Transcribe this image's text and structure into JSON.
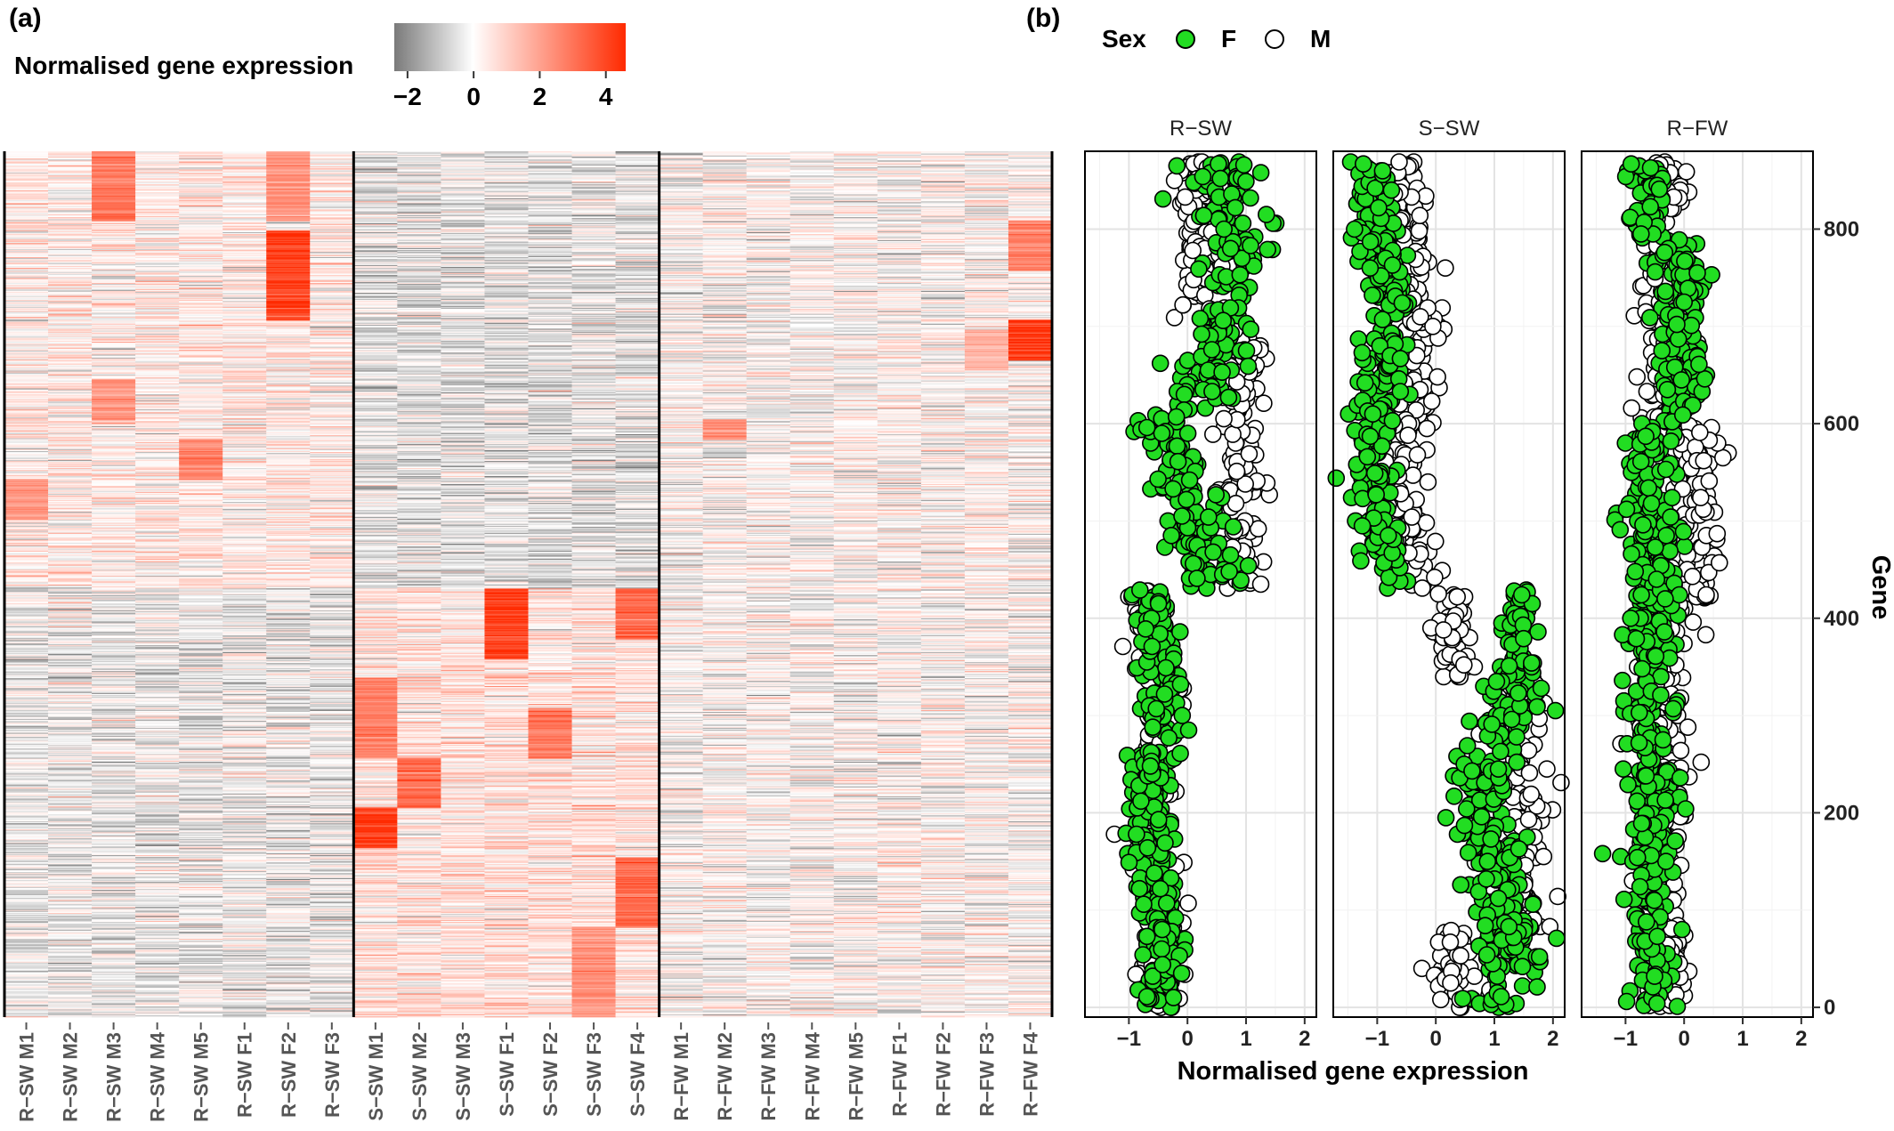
{
  "figure": {
    "panel_a_label": "(a)",
    "panel_b_label": "(b)"
  },
  "colors": {
    "low": "#7a7a7a",
    "mid": "#ffffff",
    "high": "#ff2a00",
    "female_fill": "#22dd22",
    "male_fill": "#ffffff",
    "point_stroke": "#000000"
  },
  "chart_data": [
    {
      "type": "heatmap",
      "title": "",
      "colorbar": {
        "title": "Normalised gene expression",
        "ticks": [
          "−2",
          "0",
          "2",
          "4"
        ],
        "range": [
          -2.4,
          4.6
        ]
      },
      "columns": [
        "R−SW M1",
        "R−SW M2",
        "R−SW M3",
        "R−SW M4",
        "R−SW M5",
        "R−SW F1",
        "R−SW F2",
        "R−SW F3",
        "S−SW M1",
        "S−SW M2",
        "S−SW M3",
        "S−SW F1",
        "S−SW F2",
        "S−SW F3",
        "S−SW F4",
        "R−FW M1",
        "R−FW M2",
        "R−FW M3",
        "R−FW M4",
        "R−FW M5",
        "R−FW F1",
        "R−FW F2",
        "R−FW F3",
        "R−FW F4"
      ],
      "groups": [
        "R−SW",
        "S−SW",
        "R−FW"
      ],
      "group_sizes": [
        8,
        7,
        9
      ],
      "n_genes": 870,
      "hotspots": [
        {
          "column": "R−SW M3",
          "gene_range": [
            800,
            870
          ],
          "value": 3.2
        },
        {
          "column": "R−SW M3",
          "gene_range": [
            600,
            640
          ],
          "value": 2.5
        },
        {
          "column": "R−SW F2",
          "gene_range": [
            700,
            790
          ],
          "value": 4.5
        },
        {
          "column": "R−SW F2",
          "gene_range": [
            800,
            870
          ],
          "value": 2.5
        },
        {
          "column": "R−SW M5",
          "gene_range": [
            540,
            580
          ],
          "value": 3.0
        },
        {
          "column": "R−SW M1",
          "gene_range": [
            500,
            540
          ],
          "value": 2.5
        },
        {
          "column": "S−SW F1",
          "gene_range": [
            360,
            430
          ],
          "value": 4.5
        },
        {
          "column": "S−SW F4",
          "gene_range": [
            380,
            430
          ],
          "value": 3.5
        },
        {
          "column": "S−SW F4",
          "gene_range": [
            90,
            160
          ],
          "value": 3.5
        },
        {
          "column": "S−SW F2",
          "gene_range": [
            260,
            310
          ],
          "value": 3.2
        },
        {
          "column": "S−SW M1",
          "gene_range": [
            170,
            210
          ],
          "value": 4.5
        },
        {
          "column": "S−SW M1",
          "gene_range": [
            260,
            340
          ],
          "value": 3.0
        },
        {
          "column": "S−SW M2",
          "gene_range": [
            210,
            260
          ],
          "value": 3.5
        },
        {
          "column": "S−SW F3",
          "gene_range": [
            0,
            90
          ],
          "value": 2.5
        },
        {
          "column": "R−FW F4",
          "gene_range": [
            660,
            700
          ],
          "value": 4.5
        },
        {
          "column": "R−FW F4",
          "gene_range": [
            750,
            800
          ],
          "value": 3.0
        },
        {
          "column": "R−FW M2",
          "gene_range": [
            580,
            600
          ],
          "value": 2.5
        },
        {
          "column": "R−FW F3",
          "gene_range": [
            650,
            690
          ],
          "value": 1.8
        }
      ]
    },
    {
      "type": "scatter",
      "title": "",
      "xlabel": "Normalised gene expression",
      "ylabel": "Gene",
      "xlim": [
        -1.75,
        2.2
      ],
      "ylim": [
        -10,
        880
      ],
      "xticks": [
        -1,
        0,
        1,
        2
      ],
      "yticks": [
        0,
        200,
        400,
        600,
        800
      ],
      "legend": {
        "title": "Sex",
        "entries": [
          "F",
          "M"
        ],
        "placement": "top"
      },
      "facets": [
        {
          "name": "R−SW",
          "x_mode": "rsw"
        },
        {
          "name": "S−SW",
          "x_mode": "ssw"
        },
        {
          "name": "R−FW",
          "x_mode": "rfw"
        }
      ]
    }
  ]
}
